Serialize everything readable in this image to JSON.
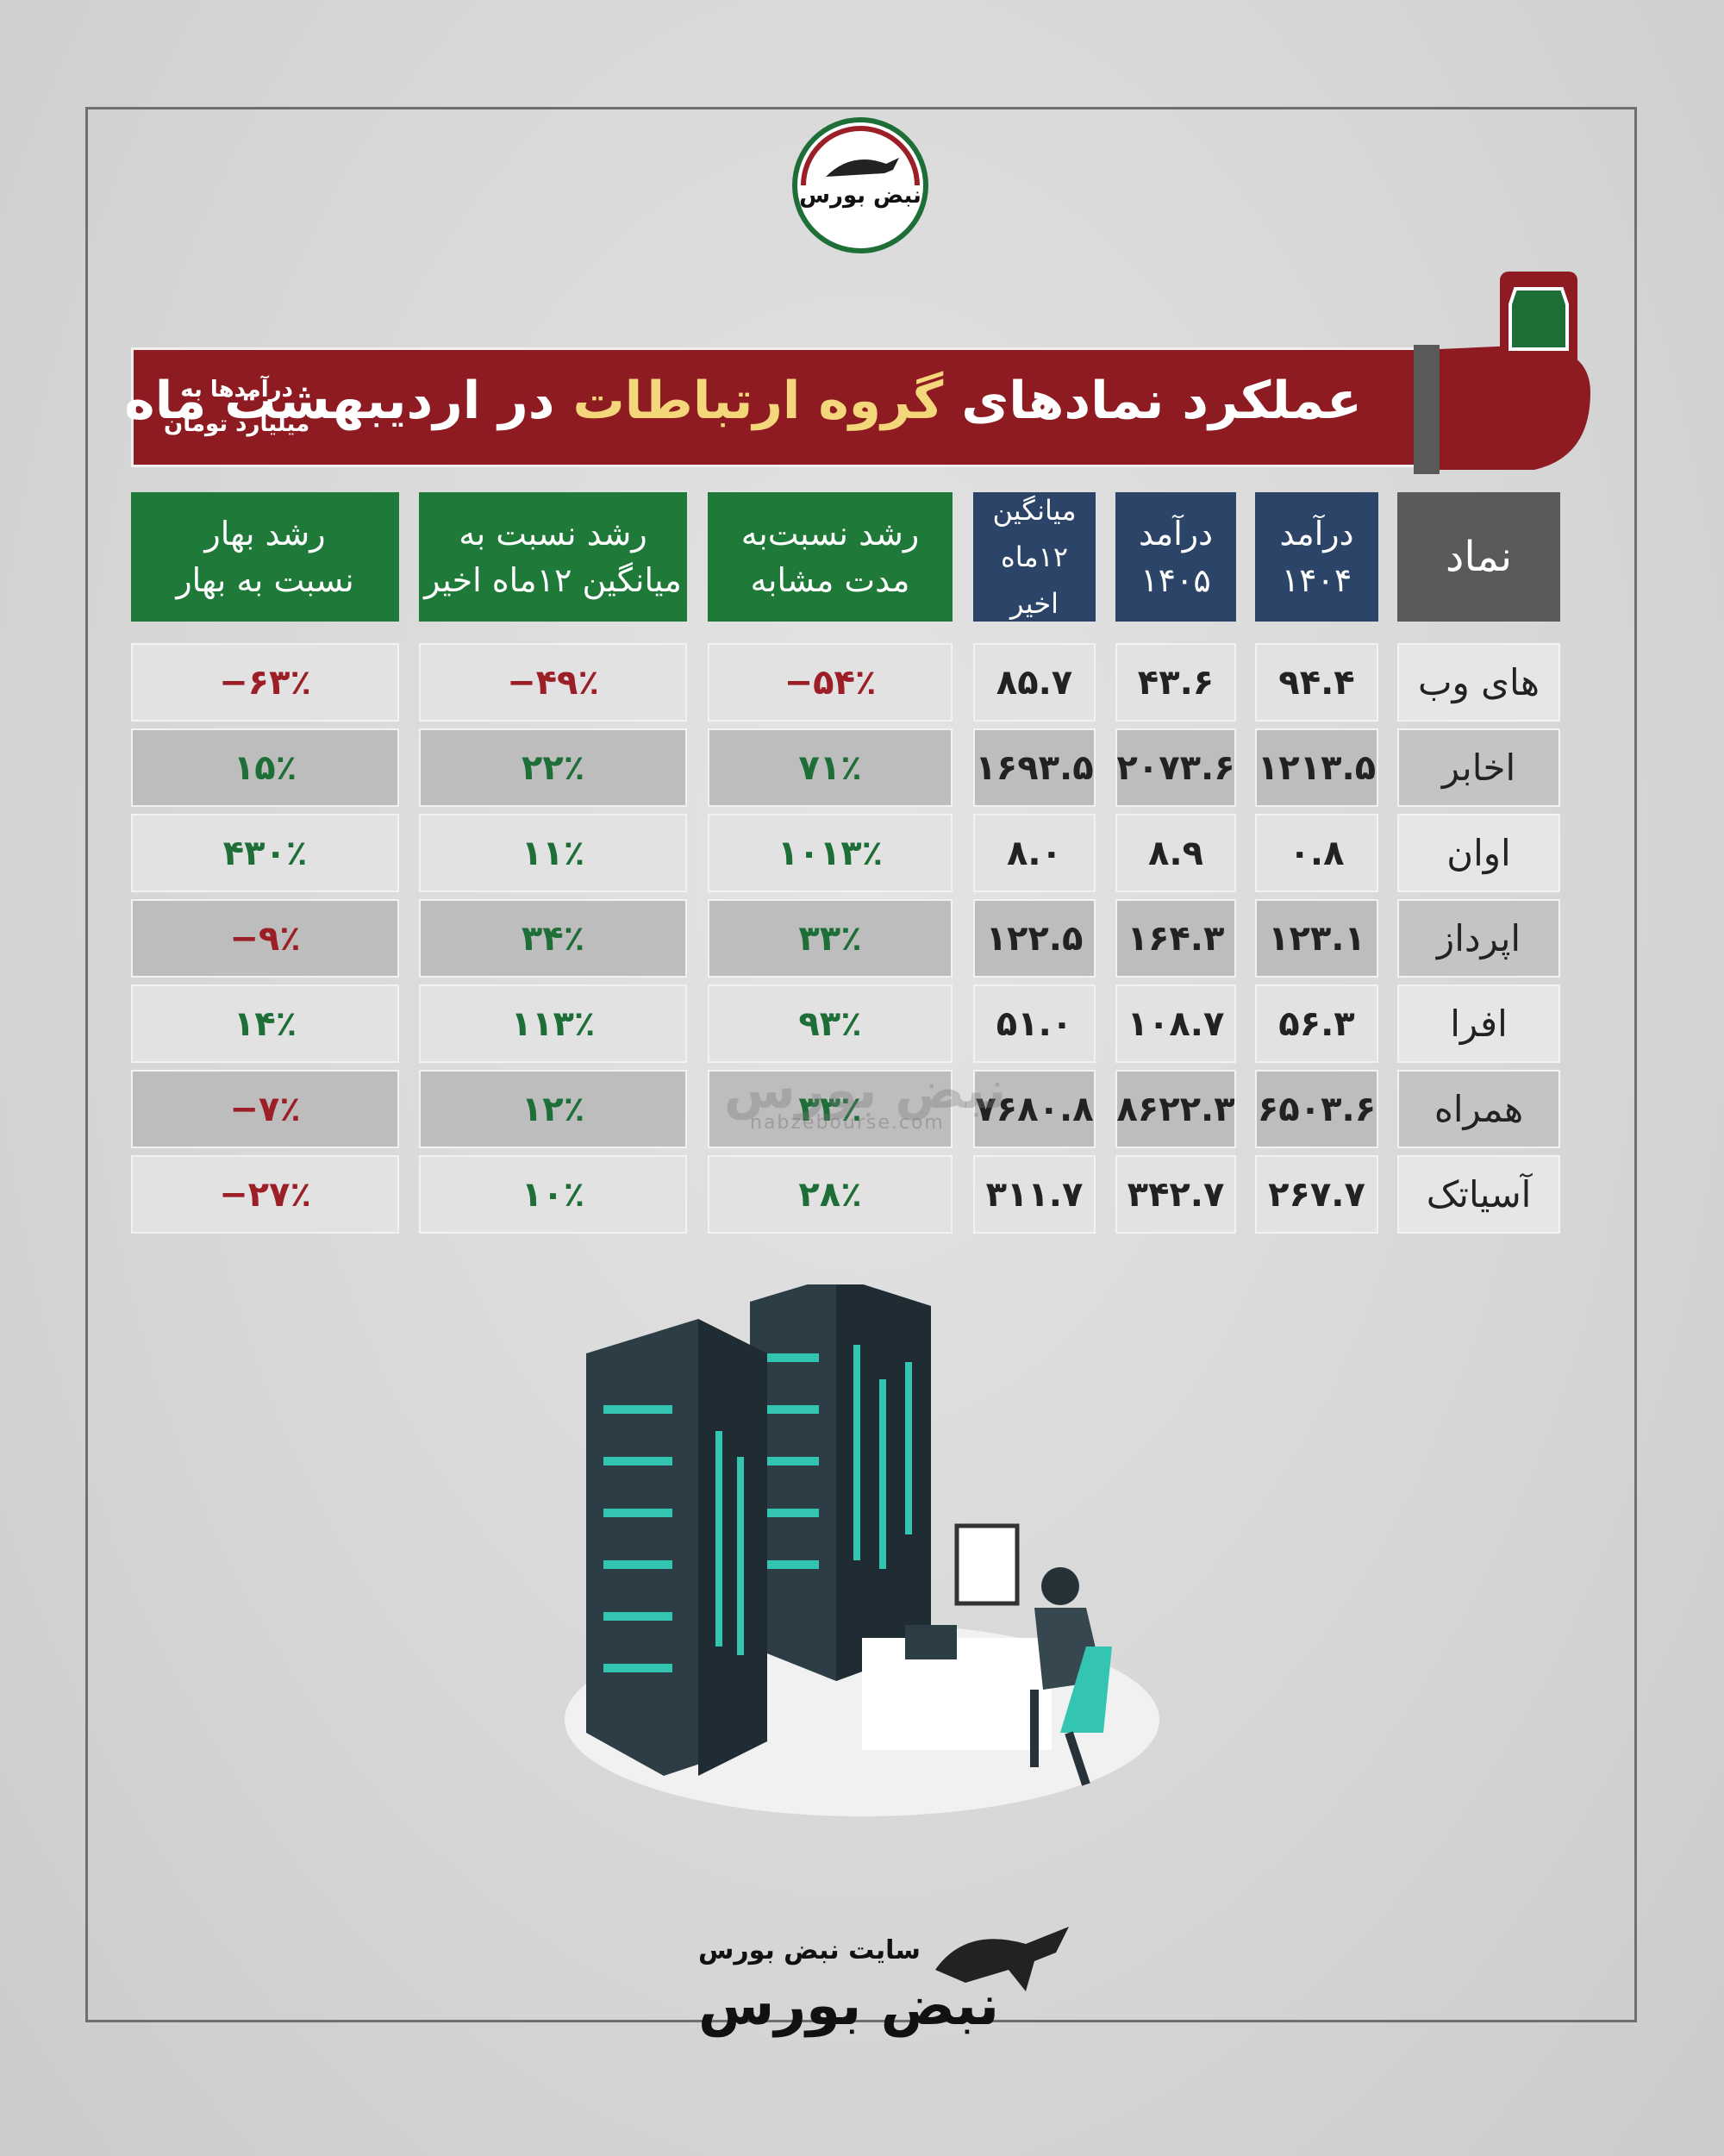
{
  "logo": {
    "text": "نبض بورس"
  },
  "header": {
    "title_parts": [
      "عملکرد نمادهای",
      "گروه ارتباطات",
      "در اردیبهشت ماه"
    ],
    "note_lines": [
      "درآمدها به",
      "میلیارد تومان"
    ]
  },
  "table": {
    "colors": {
      "negative": "#9c1f28",
      "positive": "#1d6e37"
    },
    "columns": [
      [
        "نماد"
      ],
      [
        "درآمد",
        "۱۴۰۴"
      ],
      [
        "درآمد",
        "۱۴۰۵"
      ],
      [
        "میانگین",
        "۱۲ماه اخیر"
      ],
      [
        "رشد نسبت‌به",
        "مدت مشابه"
      ],
      [
        "رشد نسبت به",
        "میانگین ۱۲ماه اخیر"
      ],
      [
        "رشد  بهار",
        "نسبت به بهار"
      ]
    ],
    "rows": [
      [
        "های وب",
        "۹۴.۴",
        "۴۳.۶",
        "۸۵.۷",
        "−۵۴٪",
        "−۴۹٪",
        "−۶۳٪"
      ],
      [
        "اخابر",
        "۱۲۱۳.۵",
        "۲۰۷۳.۶",
        "۱۶۹۳.۵",
        "۷۱٪",
        "۲۲٪",
        "۱۵٪"
      ],
      [
        "اوان",
        "۰.۸",
        "۸.۹",
        "۸.۰",
        "۱۰۱۳٪",
        "۱۱٪",
        "۴۳۰٪"
      ],
      [
        "اپرداز",
        "۱۲۳.۱",
        "۱۶۴.۳",
        "۱۲۲.۵",
        "۳۳٪",
        "۳۴٪",
        "−۹٪"
      ],
      [
        "افرا",
        "۵۶.۳",
        "۱۰۸.۷",
        "۵۱.۰",
        "۹۳٪",
        "۱۱۳٪",
        "۱۴٪"
      ],
      [
        "همراه",
        "۶۵۰۳.۶",
        "۸۶۲۲.۳",
        "۷۶۸۰.۸",
        "۳۳٪",
        "۱۲٪",
        "−۷٪"
      ],
      [
        "آسیاتک",
        "۲۶۷.۷",
        "۳۴۲.۷",
        "۳۱۱.۷",
        "۲۸٪",
        "۱۰٪",
        "−۲۷٪"
      ]
    ]
  },
  "watermark": {
    "text": "نبض بورس",
    "url": "nabzebourse.com"
  },
  "footer": {
    "caption": "سایت نبض بورس",
    "brand": "نبض بورس"
  }
}
